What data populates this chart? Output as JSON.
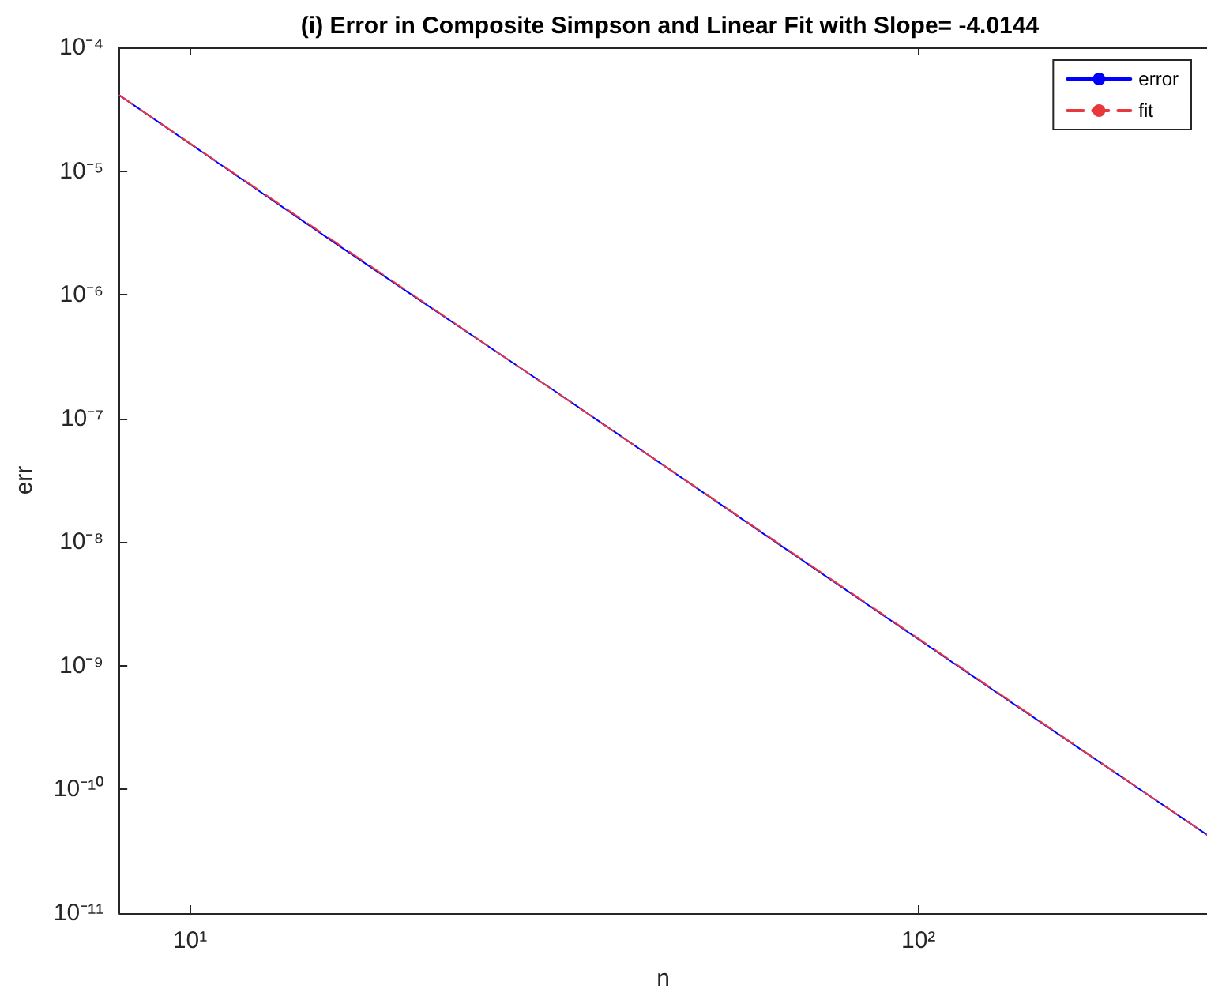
{
  "chart_data": {
    "type": "line",
    "title": "(i) Error in Composite Simpson and Linear Fit with Slope= -4.0144",
    "xlabel": "n",
    "ylabel": "err",
    "log": "xy",
    "xlim": [
      8,
      249
    ],
    "xticks": [
      {
        "value": 10,
        "label": "10¹"
      },
      {
        "value": 100,
        "label": "10²"
      }
    ],
    "ylim": [
      1e-11,
      0.0001
    ],
    "yticks": [
      {
        "value": 1e-11,
        "label": "10⁻¹¹"
      },
      {
        "value": 1e-10,
        "label": "10⁻¹⁰"
      },
      {
        "value": 1e-09,
        "label": "10⁻⁹"
      },
      {
        "value": 1e-08,
        "label": "10⁻⁸"
      },
      {
        "value": 1e-07,
        "label": "10⁻⁷"
      },
      {
        "value": 1e-06,
        "label": "10⁻⁶"
      },
      {
        "value": 1e-05,
        "label": "10⁻⁵"
      },
      {
        "value": 0.0001,
        "label": "10⁻⁴"
      }
    ],
    "grid": false,
    "legend": "top right",
    "marker": "none",
    "series": [
      {
        "name": "error",
        "color": "#0000ff",
        "line_style": "solid",
        "x": [
          8,
          16,
          32,
          64,
          128,
          249
        ],
        "values": [
          4.1e-05,
          2.5e-06,
          1.6e-07,
          9.8e-09,
          6.1e-10,
          4.3e-11
        ]
      },
      {
        "name": "fit",
        "color": "#e8383d",
        "line_style": "dashed",
        "x": [
          8,
          249
        ],
        "values": [
          4.1e-05,
          4.3e-11
        ]
      }
    ]
  }
}
